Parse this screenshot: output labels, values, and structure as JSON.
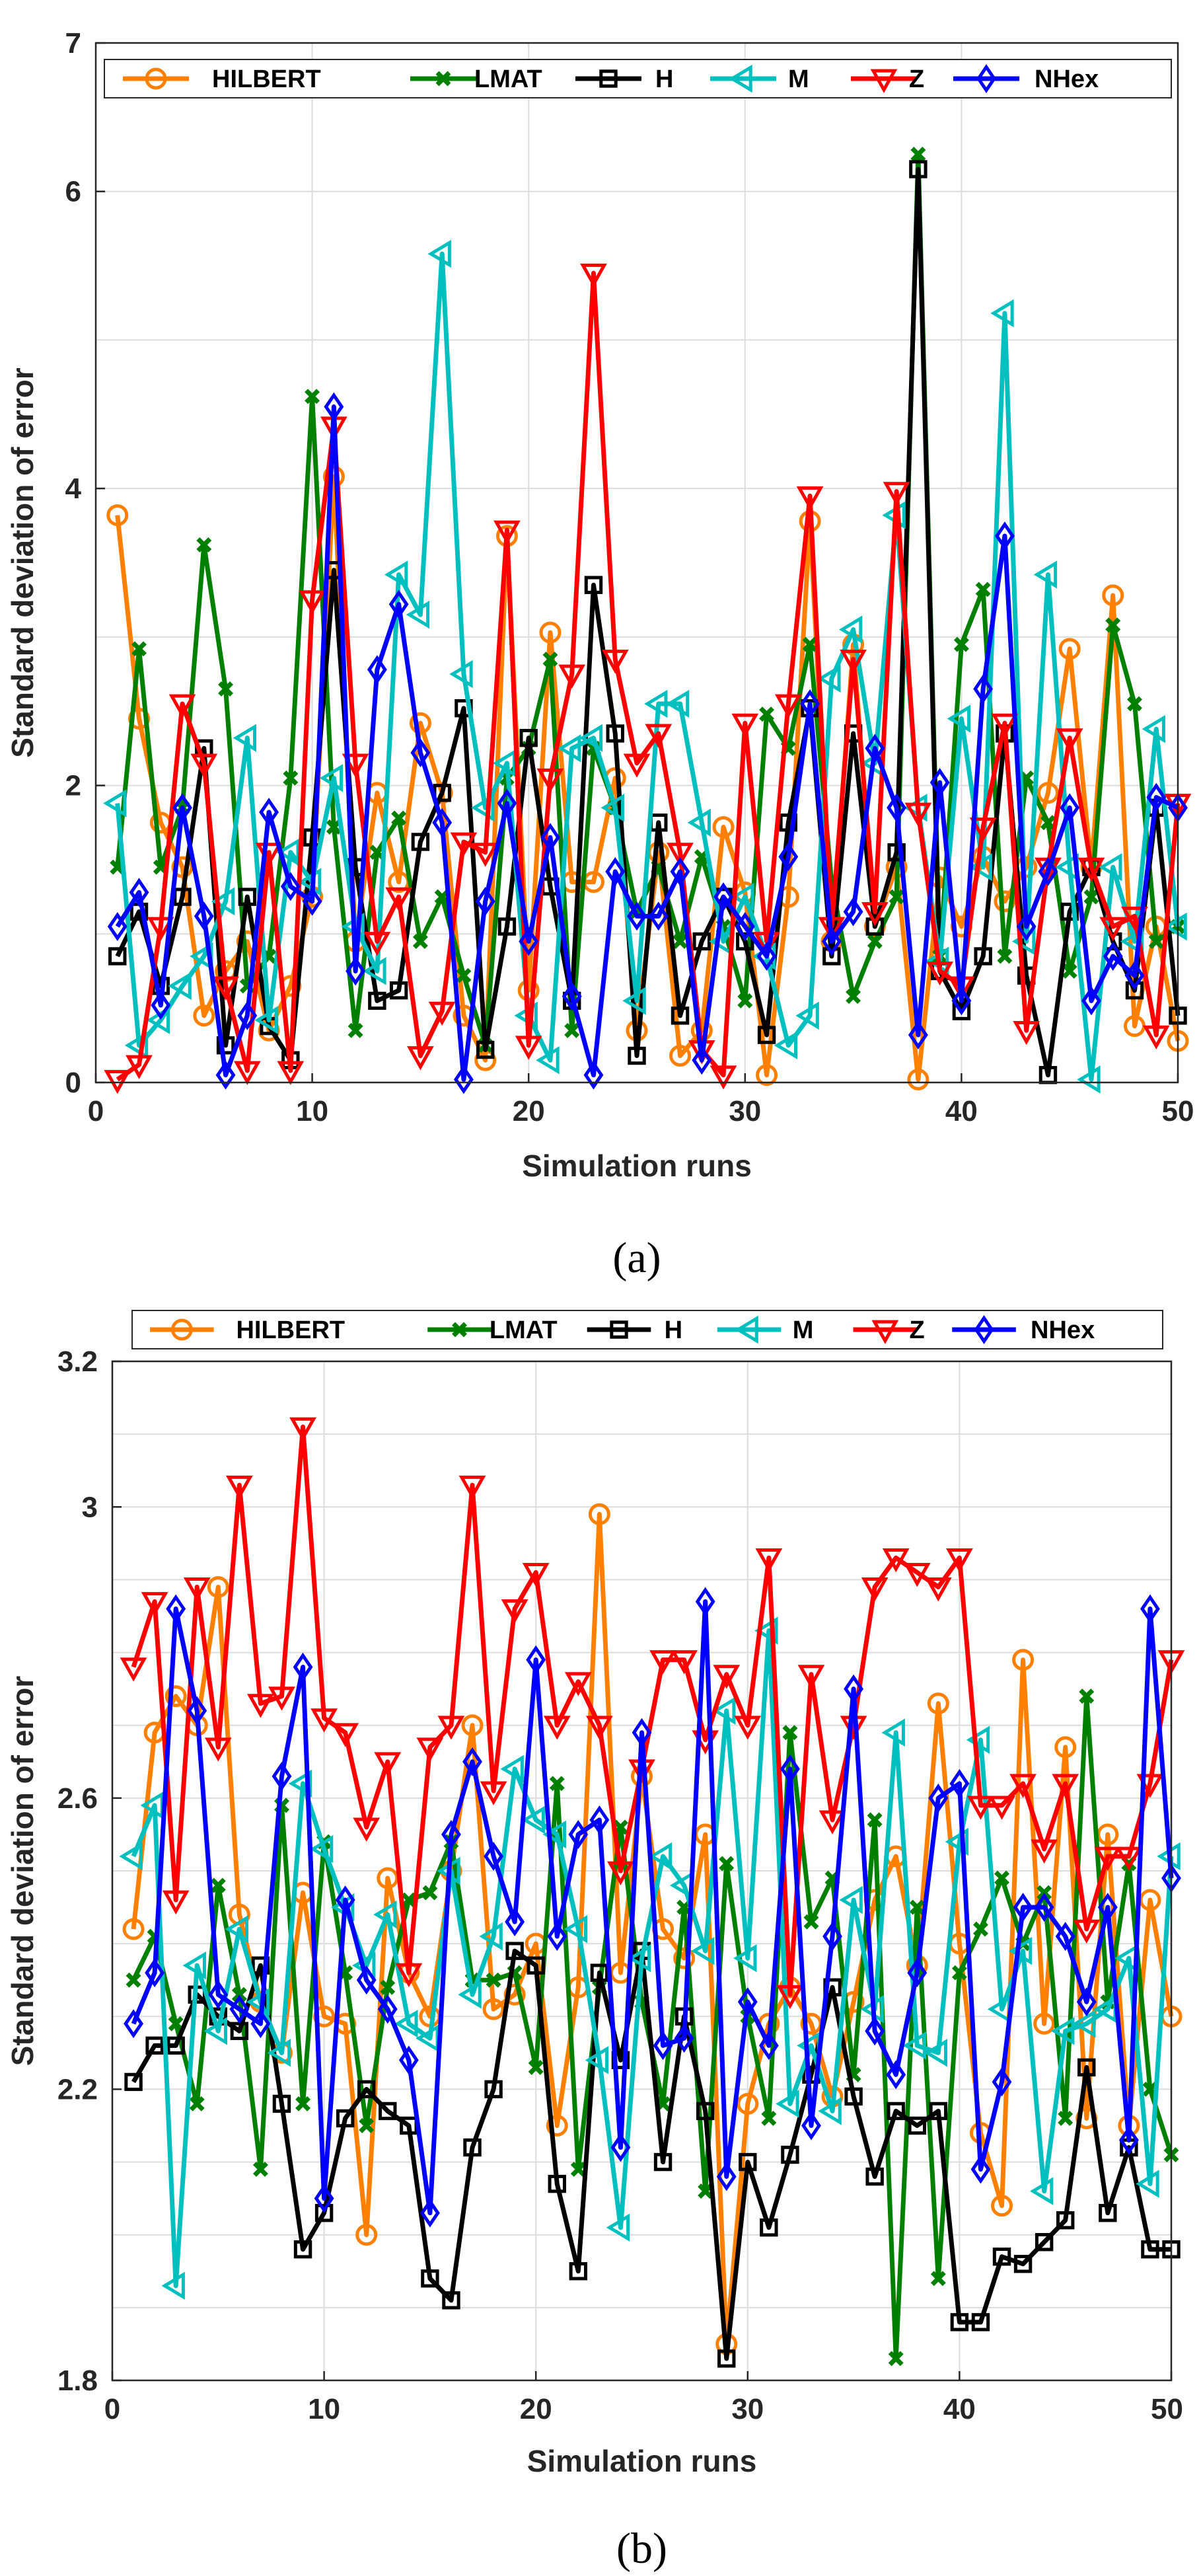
{
  "chart_data": [
    {
      "type": "line",
      "caption": "(a)",
      "xlabel": "Simulation runs",
      "ylabel": "Standard deviation of error",
      "xlim": [
        0,
        50
      ],
      "ylim": [
        0,
        7
      ],
      "xticks": [
        "0",
        "10",
        "20",
        "30",
        "40",
        "50"
      ],
      "yticks": [
        "0",
        "2",
        "4",
        "6",
        "7"
      ],
      "grid": true,
      "legend_position": "top",
      "x": [
        1,
        2,
        3,
        4,
        5,
        6,
        7,
        8,
        9,
        10,
        11,
        12,
        13,
        14,
        15,
        16,
        17,
        18,
        19,
        20,
        21,
        22,
        23,
        24,
        25,
        26,
        27,
        28,
        29,
        30,
        31,
        32,
        33,
        34,
        35,
        36,
        37,
        38,
        39,
        40,
        41,
        42,
        43,
        44,
        45,
        46,
        47,
        48,
        49,
        50
      ],
      "series": [
        {
          "name": "HILBERT",
          "color": "#ff8000",
          "marker": "circle",
          "values": [
            3.82,
            2.45,
            1.75,
            1.45,
            0.45,
            0.75,
            0.95,
            0.35,
            0.65,
            1.25,
            4.08,
            0.95,
            1.95,
            1.35,
            2.42,
            1.95,
            0.45,
            0.15,
            3.68,
            0.62,
            3.03,
            1.35,
            1.35,
            2.05,
            0.35,
            1.55,
            0.18,
            0.35,
            1.72,
            1.28,
            0.05,
            1.25,
            3.78,
            0.95,
            2.95,
            1.05,
            1.45,
            0.02,
            1.38,
            1.05,
            1.52,
            1.22,
            1.45,
            1.95,
            2.92,
            1.45,
            3.28,
            0.38,
            1.05,
            0.28
          ]
        },
        {
          "name": "LMAT",
          "color": "#008000",
          "marker": "x",
          "values": [
            1.45,
            2.92,
            1.45,
            1.85,
            3.62,
            2.65,
            0.65,
            0.85,
            2.05,
            4.62,
            1.72,
            0.35,
            1.55,
            1.78,
            0.95,
            1.25,
            0.72,
            0.25,
            2.05,
            2.25,
            2.85,
            0.35,
            2.25,
            1.85,
            1.15,
            1.45,
            0.95,
            1.52,
            1.05,
            0.55,
            2.48,
            2.25,
            2.95,
            1.35,
            0.58,
            0.95,
            1.25,
            6.25,
            0.85,
            2.95,
            3.32,
            0.85,
            2.05,
            1.75,
            0.75,
            1.25,
            3.08,
            2.55,
            0.95,
            1.05
          ]
        },
        {
          "name": "H",
          "color": "#000000",
          "marker": "square",
          "values": [
            0.85,
            1.15,
            0.65,
            1.25,
            2.25,
            0.25,
            1.25,
            0.38,
            0.15,
            1.65,
            3.45,
            1.45,
            0.55,
            0.62,
            1.62,
            1.95,
            2.52,
            0.22,
            1.05,
            2.32,
            1.32,
            0.55,
            3.35,
            2.35,
            0.18,
            1.75,
            0.45,
            0.95,
            1.25,
            0.95,
            0.32,
            1.75,
            2.52,
            0.85,
            2.35,
            1.05,
            1.55,
            6.15,
            0.75,
            0.48,
            0.85,
            2.35,
            0.72,
            0.05,
            1.15,
            1.45,
            0.95,
            0.62,
            1.85,
            0.45
          ]
        },
        {
          "name": "M",
          "color": "#00bfbf",
          "marker": "triangle-left",
          "values": [
            1.88,
            0.25,
            0.42,
            0.65,
            0.85,
            1.22,
            2.32,
            0.42,
            1.55,
            1.35,
            2.05,
            1.05,
            0.75,
            3.42,
            3.15,
            5.58,
            2.75,
            1.85,
            2.15,
            0.45,
            0.15,
            2.25,
            2.32,
            1.85,
            0.55,
            2.55,
            2.55,
            1.75,
            0.95,
            1.25,
            0.85,
            0.25,
            0.45,
            2.72,
            3.05,
            2.15,
            3.82,
            1.85,
            0.82,
            2.45,
            1.45,
            5.18,
            0.95,
            3.42,
            1.45,
            0.02,
            1.45,
            0.95,
            2.38,
            1.05
          ]
        },
        {
          "name": "Z",
          "color": "#ff0000",
          "marker": "triangle-down",
          "values": [
            0.02,
            0.12,
            1.05,
            2.55,
            2.15,
            0.65,
            0.08,
            1.55,
            0.08,
            3.25,
            4.42,
            2.15,
            0.95,
            1.25,
            0.18,
            0.48,
            1.62,
            1.55,
            3.72,
            0.25,
            2.05,
            2.75,
            5.45,
            2.85,
            2.15,
            2.35,
            1.55,
            0.22,
            0.05,
            2.42,
            0.95,
            2.55,
            3.95,
            1.05,
            2.85,
            1.15,
            3.98,
            1.82,
            0.75,
            0.65,
            1.72,
            2.42,
            0.35,
            1.45,
            2.32,
            1.45,
            1.05,
            1.12,
            0.32,
            1.88
          ]
        },
        {
          "name": "NHex",
          "color": "#0000ff",
          "marker": "diamond",
          "values": [
            1.05,
            1.28,
            0.52,
            1.85,
            1.12,
            0.05,
            0.45,
            1.82,
            1.32,
            1.22,
            4.55,
            0.75,
            2.78,
            3.22,
            2.22,
            1.75,
            0.02,
            1.22,
            1.88,
            0.95,
            1.65,
            0.58,
            0.05,
            1.42,
            1.12,
            1.12,
            1.42,
            0.15,
            1.25,
            1.05,
            0.85,
            1.52,
            2.55,
            0.95,
            1.15,
            2.25,
            1.85,
            0.32,
            2.02,
            0.55,
            2.65,
            3.68,
            1.05,
            1.42,
            1.85,
            0.55,
            0.85,
            0.72,
            1.92,
            1.85
          ]
        }
      ]
    },
    {
      "type": "line",
      "caption": "(b)",
      "xlabel": "Simulation runs",
      "ylabel": "Standard deviation of error",
      "xlim": [
        0,
        50
      ],
      "ylim": [
        1.8,
        3.2
      ],
      "xticks": [
        "0",
        "10",
        "20",
        "30",
        "40",
        "50"
      ],
      "yticks": [
        "1.8",
        "2.2",
        "2.6",
        "3",
        "3.2"
      ],
      "grid": true,
      "legend_position": "top",
      "x": [
        1,
        2,
        3,
        4,
        5,
        6,
        7,
        8,
        9,
        10,
        11,
        12,
        13,
        14,
        15,
        16,
        17,
        18,
        19,
        20,
        21,
        22,
        23,
        24,
        25,
        26,
        27,
        28,
        29,
        30,
        31,
        32,
        33,
        34,
        35,
        36,
        37,
        38,
        39,
        40,
        41,
        42,
        43,
        44,
        45,
        46,
        47,
        48,
        49,
        50
      ],
      "series": [
        {
          "name": "HILBERT",
          "color": "#ff8000",
          "marker": "circle",
          "values": [
            2.42,
            2.69,
            2.74,
            2.7,
            2.89,
            2.44,
            2.32,
            2.25,
            2.47,
            2.3,
            2.29,
            2.0,
            2.49,
            2.36,
            2.3,
            2.5,
            2.7,
            2.31,
            2.33,
            2.4,
            2.15,
            2.34,
            2.99,
            2.36,
            2.63,
            2.42,
            2.38,
            2.55,
            1.85,
            2.18,
            2.29,
            2.34,
            2.29,
            2.19,
            2.32,
            2.46,
            2.52,
            2.37,
            2.73,
            2.4,
            2.14,
            2.04,
            2.79,
            2.29,
            2.67,
            2.16,
            2.55,
            2.15,
            2.46,
            2.3
          ]
        },
        {
          "name": "LMAT",
          "color": "#008000",
          "marker": "x",
          "values": [
            2.35,
            2.41,
            2.29,
            2.18,
            2.48,
            2.33,
            2.09,
            2.59,
            2.18,
            2.54,
            2.36,
            2.15,
            2.34,
            2.46,
            2.47,
            2.54,
            2.35,
            2.35,
            2.36,
            2.23,
            2.62,
            2.09,
            2.34,
            2.56,
            2.32,
            2.18,
            2.45,
            2.06,
            2.51,
            2.3,
            2.16,
            2.69,
            2.43,
            2.49,
            2.22,
            2.57,
            1.83,
            2.45,
            1.94,
            2.36,
            2.42,
            2.49,
            2.4,
            2.47,
            2.16,
            2.74,
            2.32,
            2.51,
            2.2,
            2.11
          ]
        },
        {
          "name": "H",
          "color": "#000000",
          "marker": "square",
          "values": [
            2.21,
            2.26,
            2.26,
            2.33,
            2.3,
            2.28,
            2.37,
            2.18,
            1.98,
            2.03,
            2.16,
            2.2,
            2.17,
            2.15,
            1.94,
            1.91,
            2.12,
            2.2,
            2.39,
            2.37,
            2.07,
            1.95,
            2.36,
            2.24,
            2.39,
            2.1,
            2.3,
            2.17,
            1.83,
            2.1,
            2.01,
            2.11,
            2.22,
            2.34,
            2.19,
            2.08,
            2.17,
            2.15,
            2.17,
            1.88,
            1.88,
            1.97,
            1.96,
            1.99,
            2.02,
            2.23,
            2.03,
            2.12,
            1.98,
            1.98
          ]
        },
        {
          "name": "M",
          "color": "#00bfbf",
          "marker": "triangle-left",
          "values": [
            2.52,
            2.59,
            1.93,
            2.37,
            2.28,
            2.42,
            2.32,
            2.25,
            2.62,
            2.53,
            2.45,
            2.37,
            2.44,
            2.29,
            2.27,
            2.5,
            2.33,
            2.41,
            2.64,
            2.57,
            2.55,
            2.42,
            2.24,
            2.01,
            2.38,
            2.52,
            2.48,
            2.39,
            2.72,
            2.38,
            2.83,
            2.18,
            2.26,
            2.17,
            2.46,
            2.31,
            2.69,
            2.26,
            2.25,
            2.54,
            2.68,
            2.31,
            2.39,
            2.06,
            2.28,
            2.29,
            2.31,
            2.38,
            2.07,
            2.52
          ]
        },
        {
          "name": "Z",
          "color": "#ff0000",
          "marker": "triangle-down",
          "values": [
            2.78,
            2.87,
            2.46,
            2.89,
            2.67,
            3.03,
            2.73,
            2.74,
            3.11,
            2.71,
            2.69,
            2.56,
            2.65,
            2.36,
            2.67,
            2.7,
            3.03,
            2.61,
            2.86,
            2.91,
            2.7,
            2.76,
            2.7,
            2.5,
            2.64,
            2.79,
            2.79,
            2.68,
            2.77,
            2.7,
            2.93,
            2.33,
            2.77,
            2.57,
            2.7,
            2.89,
            2.93,
            2.91,
            2.89,
            2.93,
            2.59,
            2.59,
            2.62,
            2.53,
            2.62,
            2.42,
            2.52,
            2.52,
            2.62,
            2.79
          ]
        },
        {
          "name": "NHex",
          "color": "#0000ff",
          "marker": "diamond",
          "values": [
            2.29,
            2.36,
            2.86,
            2.72,
            2.33,
            2.31,
            2.29,
            2.63,
            2.78,
            2.05,
            2.46,
            2.35,
            2.31,
            2.24,
            2.03,
            2.55,
            2.65,
            2.52,
            2.43,
            2.79,
            2.41,
            2.55,
            2.57,
            2.12,
            2.69,
            2.26,
            2.27,
            2.87,
            2.08,
            2.32,
            2.26,
            2.64,
            2.15,
            2.41,
            2.75,
            2.28,
            2.22,
            2.36,
            2.6,
            2.62,
            2.09,
            2.21,
            2.45,
            2.45,
            2.41,
            2.32,
            2.45,
            2.13,
            2.86,
            2.49
          ]
        }
      ]
    }
  ]
}
